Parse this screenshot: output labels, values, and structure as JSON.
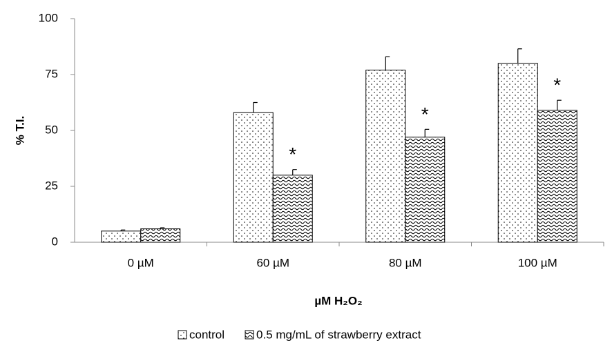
{
  "chart_data": {
    "type": "bar",
    "ylabel": "% T.I.",
    "xlabel": "µM H₂O₂",
    "categories": [
      "0 µM",
      "60 µM",
      "80 µM",
      "100 µM"
    ],
    "series": [
      {
        "name": "control",
        "pattern": "dots",
        "color": "#000000",
        "values": [
          5,
          58,
          77,
          80
        ],
        "errors": [
          0.5,
          4.5,
          6,
          6.5
        ]
      },
      {
        "name": "0.5 mg/mL of strawberry extract",
        "pattern": "waves",
        "color": "#000000",
        "values": [
          6,
          30,
          47,
          59
        ],
        "errors": [
          0.5,
          2.5,
          3.5,
          4.5
        ],
        "significance": [
          null,
          "*",
          "*",
          "*"
        ]
      }
    ],
    "ylim": [
      0,
      100
    ],
    "yticks": [
      0,
      25,
      50,
      75,
      100
    ],
    "grid": false,
    "legend": "bottom"
  }
}
